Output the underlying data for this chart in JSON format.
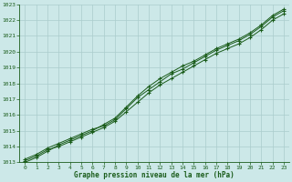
{
  "title": "Graphe pression niveau de la mer (hPa)",
  "bg_color": "#cce8e8",
  "grid_color": "#aacccc",
  "line_color": "#1a5c1a",
  "xlim": [
    -0.5,
    23.5
  ],
  "ylim": [
    1013,
    1023
  ],
  "xticks": [
    0,
    1,
    2,
    3,
    4,
    5,
    6,
    7,
    8,
    9,
    10,
    11,
    12,
    13,
    14,
    15,
    16,
    17,
    18,
    19,
    20,
    21,
    22,
    23
  ],
  "yticks": [
    1013,
    1014,
    1015,
    1016,
    1017,
    1018,
    1019,
    1020,
    1021,
    1022,
    1023
  ],
  "series": [
    [
      1013.1,
      1013.4,
      1013.8,
      1014.0,
      1014.3,
      1014.6,
      1014.9,
      1015.2,
      1015.6,
      1016.2,
      1016.8,
      1017.4,
      1017.9,
      1018.3,
      1018.7,
      1019.1,
      1019.5,
      1019.9,
      1020.2,
      1020.5,
      1020.9,
      1021.4,
      1022.0,
      1022.4
    ],
    [
      1013.2,
      1013.5,
      1013.9,
      1014.2,
      1014.5,
      1014.8,
      1015.1,
      1015.3,
      1015.7,
      1016.4,
      1017.1,
      1017.6,
      1018.1,
      1018.6,
      1018.9,
      1019.3,
      1019.7,
      1020.1,
      1020.4,
      1020.7,
      1021.1,
      1021.6,
      1022.2,
      1022.6
    ],
    [
      1013.0,
      1013.3,
      1013.7,
      1014.1,
      1014.4,
      1014.7,
      1015.0,
      1015.4,
      1015.8,
      1016.5,
      1017.2,
      1017.8,
      1018.3,
      1018.7,
      1019.1,
      1019.4,
      1019.8,
      1020.2,
      1020.5,
      1020.8,
      1021.2,
      1021.7,
      1022.3,
      1022.7
    ]
  ]
}
